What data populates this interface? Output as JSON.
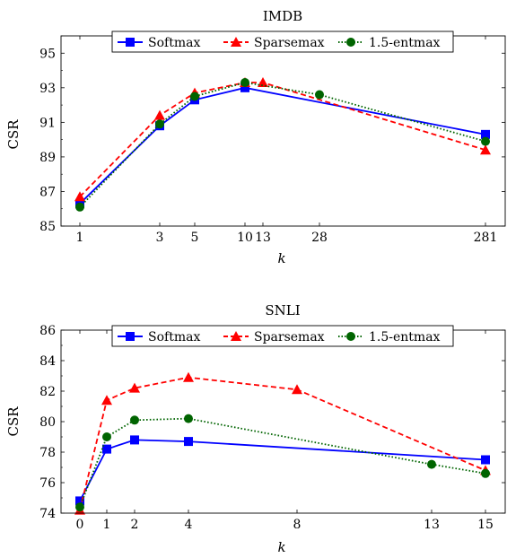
{
  "chart_data": [
    {
      "type": "line",
      "title": "IMDB",
      "xlabel": "k",
      "ylabel": "CSR",
      "x_ticks": [
        "1",
        "3",
        "5",
        "10",
        "13",
        "28",
        "281"
      ],
      "x_categories": [
        1,
        3,
        5,
        10,
        13,
        28,
        281
      ],
      "ylim": [
        85,
        96
      ],
      "y_ticks": [
        85,
        87,
        89,
        91,
        93,
        95
      ],
      "legend_position": "top",
      "series": [
        {
          "name": "Softmax",
          "color": "#0000ff",
          "dash": "solid",
          "marker": "square",
          "x": [
            1,
            3,
            5,
            10,
            281
          ],
          "y": [
            86.3,
            90.8,
            92.3,
            93.0,
            90.3
          ]
        },
        {
          "name": "Sparsemax",
          "color": "#ff0000",
          "dash": "dashed",
          "marker": "triangle",
          "x": [
            1,
            3,
            5,
            10,
            13,
            281
          ],
          "y": [
            86.7,
            91.4,
            92.7,
            93.3,
            93.3,
            89.4
          ]
        },
        {
          "name": "1.5-entmax",
          "color": "#006400",
          "dash": "dotted",
          "marker": "circle",
          "x": [
            1,
            3,
            5,
            10,
            28,
            281
          ],
          "y": [
            86.1,
            90.9,
            92.5,
            93.3,
            92.6,
            89.9
          ]
        }
      ]
    },
    {
      "type": "line",
      "title": "SNLI",
      "xlabel": "k",
      "ylabel": "CSR",
      "x_ticks": [
        "0",
        "1",
        "2",
        "4",
        "8",
        "13",
        "15"
      ],
      "x_categories": [
        0,
        1,
        2,
        4,
        8,
        13,
        15
      ],
      "ylim": [
        74,
        86
      ],
      "y_ticks": [
        74,
        76,
        78,
        80,
        82,
        84,
        86
      ],
      "legend_position": "top",
      "series": [
        {
          "name": "Softmax",
          "color": "#0000ff",
          "dash": "solid",
          "marker": "square",
          "x": [
            0,
            1,
            2,
            4,
            15
          ],
          "y": [
            74.8,
            78.2,
            78.8,
            78.7,
            77.5
          ]
        },
        {
          "name": "Sparsemax",
          "color": "#ff0000",
          "dash": "dashed",
          "marker": "triangle",
          "x": [
            0,
            1,
            2,
            4,
            8,
            15
          ],
          "y": [
            74.2,
            81.4,
            82.2,
            82.9,
            82.1,
            76.8
          ]
        },
        {
          "name": "1.5-entmax",
          "color": "#006400",
          "dash": "dotted",
          "marker": "circle",
          "x": [
            0,
            1,
            2,
            4,
            13,
            15
          ],
          "y": [
            74.4,
            79.0,
            80.1,
            80.2,
            77.2,
            76.6
          ]
        }
      ]
    }
  ]
}
